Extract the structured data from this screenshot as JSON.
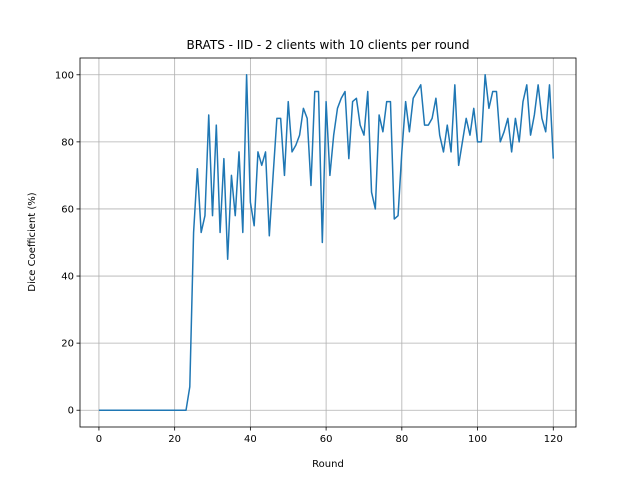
{
  "chart_data": {
    "type": "line",
    "title": "BRATS - IID - 2 clients with 10 clients per round",
    "xlabel": "Round",
    "ylabel": "Dice Coefficient (%)",
    "xlim": [
      -5,
      126
    ],
    "ylim": [
      -5,
      105
    ],
    "xticks": [
      0,
      20,
      40,
      60,
      80,
      100,
      120
    ],
    "yticks": [
      0,
      20,
      40,
      60,
      80,
      100
    ],
    "grid": true,
    "series_color": "#1f77b4",
    "series": [
      {
        "values": [
          0,
          0,
          0,
          0,
          0,
          0,
          0,
          0,
          0,
          0,
          0,
          0,
          0,
          0,
          0,
          0,
          0,
          0,
          0,
          0,
          0,
          0,
          0,
          0,
          7,
          53,
          72,
          53,
          58,
          88,
          58,
          85,
          53,
          75,
          45,
          70,
          58,
          77,
          53,
          100,
          62,
          55,
          77,
          73,
          77,
          52,
          70,
          87,
          87,
          70,
          92,
          77,
          79,
          82,
          90,
          87,
          67,
          95,
          95,
          50,
          92,
          70,
          82,
          90,
          93,
          95,
          75,
          92,
          93,
          85,
          82,
          95,
          65,
          60,
          88,
          83,
          92,
          92,
          57,
          58,
          77,
          92,
          83,
          93,
          95,
          97,
          85,
          85,
          87,
          93,
          82,
          77,
          85,
          77,
          97,
          73,
          80,
          87,
          82,
          90,
          80,
          80,
          100,
          90,
          95,
          95,
          80,
          83,
          87,
          77,
          87,
          80,
          92,
          97,
          82,
          88,
          97,
          87,
          83,
          97,
          75
        ]
      }
    ]
  }
}
